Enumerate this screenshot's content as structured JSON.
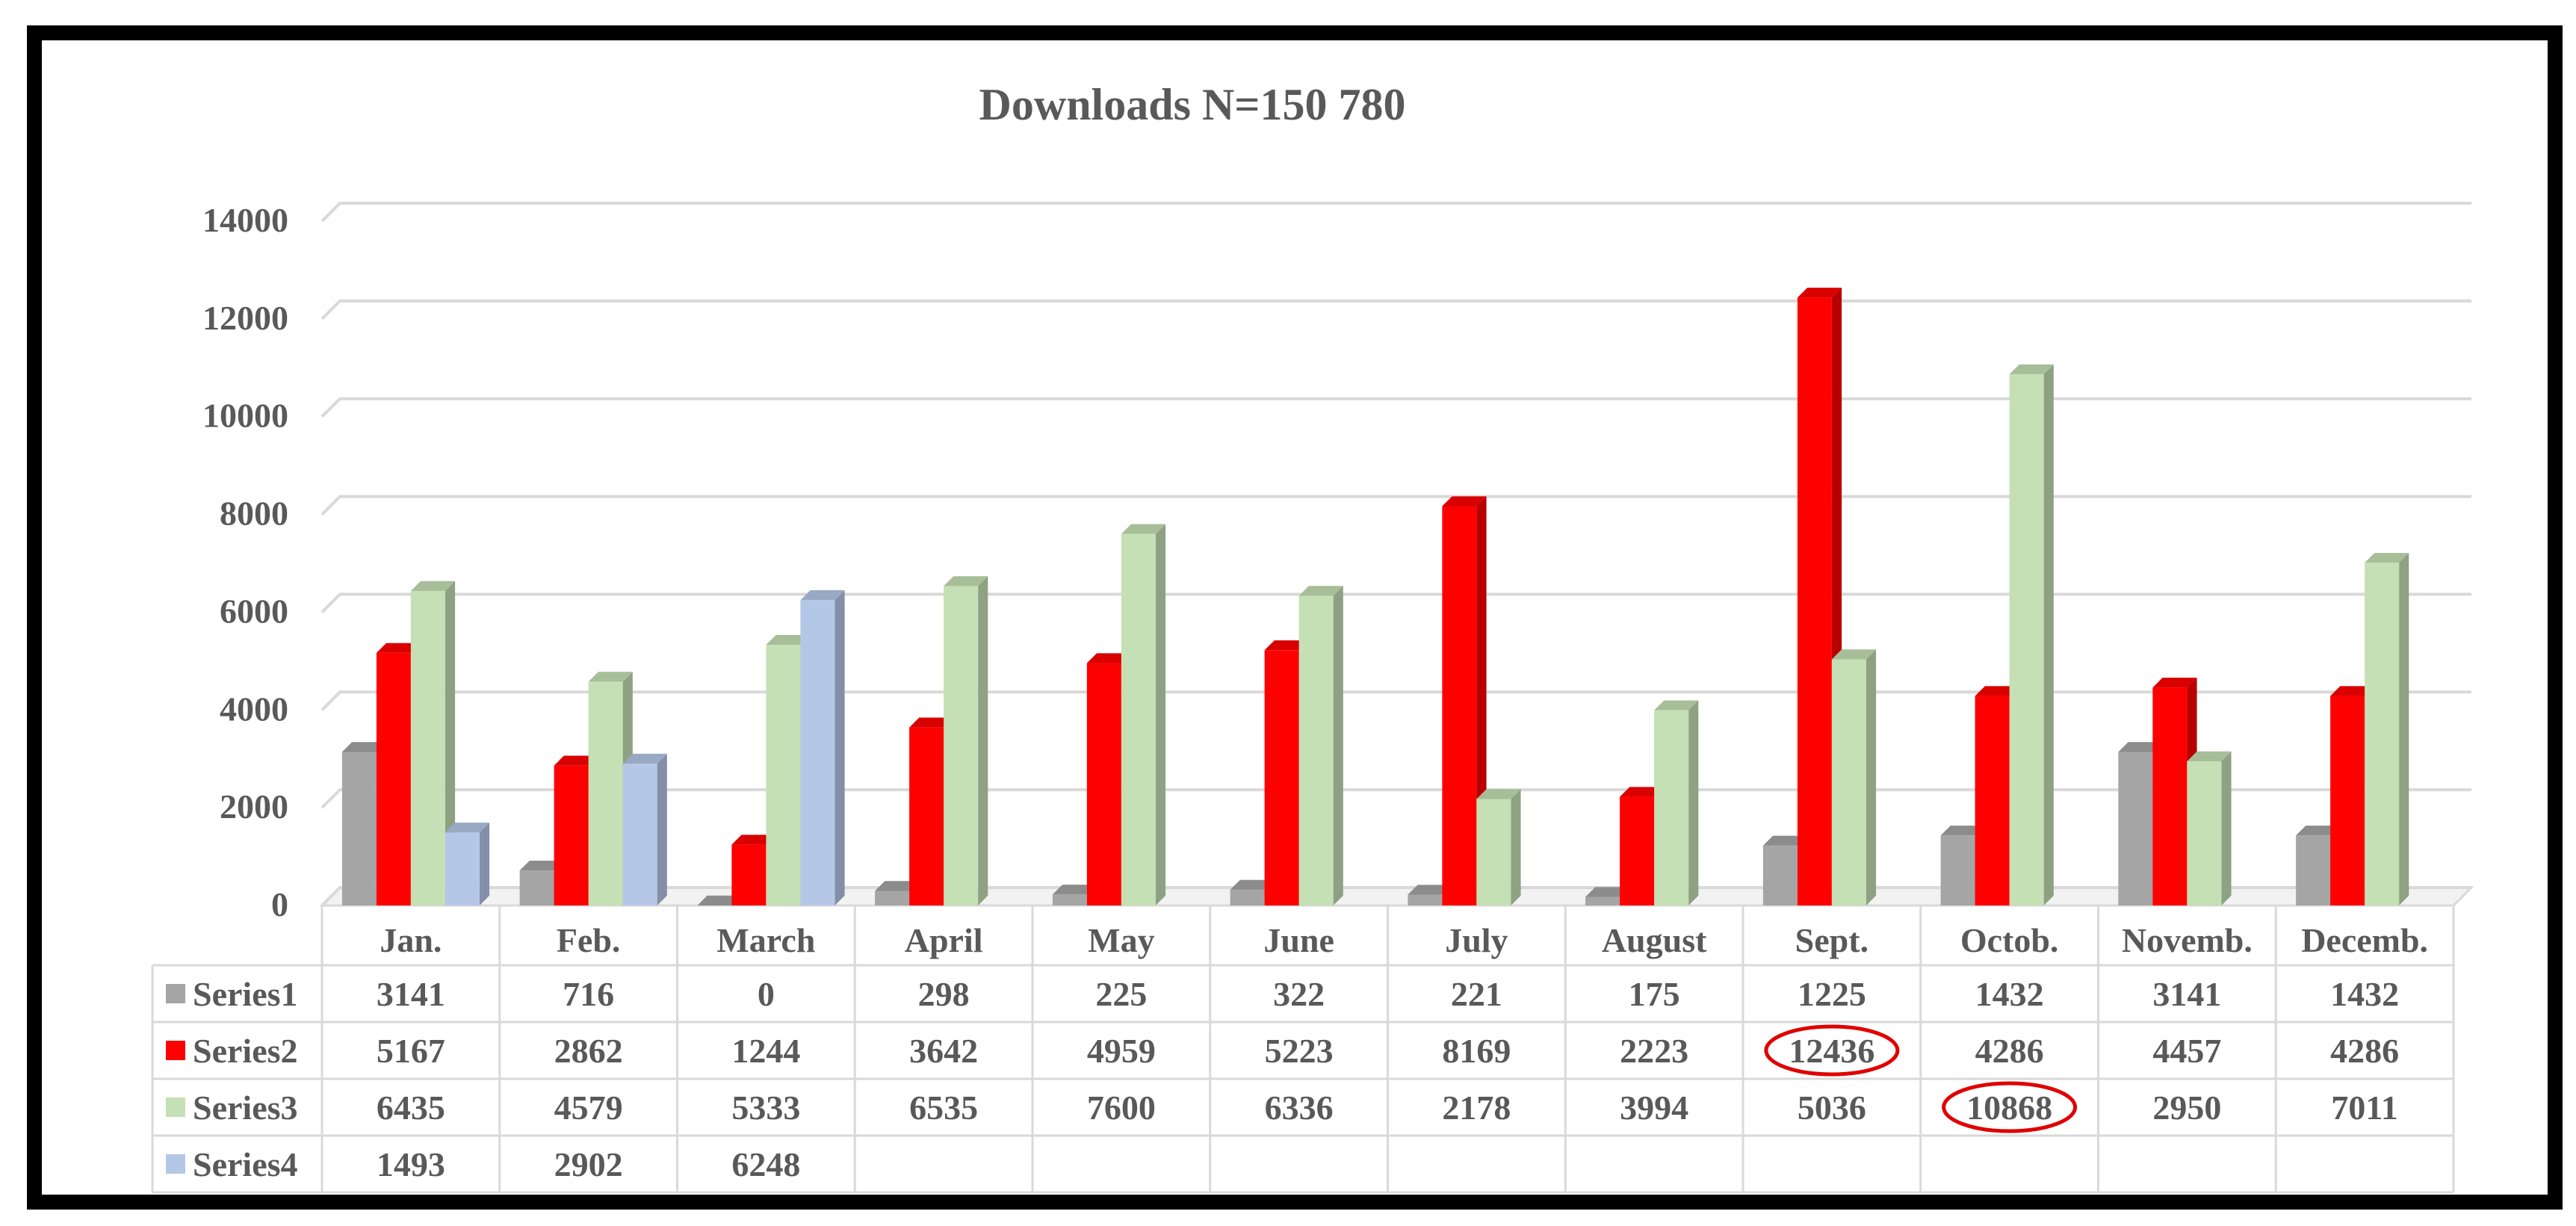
{
  "chart_data": {
    "type": "bar",
    "title": "Downloads  N=150 780",
    "xlabel": "",
    "ylabel": "",
    "ylim": [
      0,
      14000
    ],
    "yticks": [
      0,
      2000,
      4000,
      6000,
      8000,
      10000,
      12000,
      14000
    ],
    "grid": true,
    "legend": "data-table",
    "categories": [
      "Jan.",
      "Feb.",
      "March",
      "April",
      "May",
      "June",
      "July",
      "August",
      "Sept.",
      "Octob.",
      "Novemb.",
      "Decemb."
    ],
    "series": [
      {
        "name": "Series1",
        "color": "#a5a5a5",
        "values": [
          3141,
          716,
          0,
          298,
          225,
          322,
          221,
          175,
          1225,
          1432,
          3141,
          1432
        ]
      },
      {
        "name": "Series2",
        "color": "#ff0000",
        "values": [
          5167,
          2862,
          1244,
          3642,
          4959,
          5223,
          8169,
          2223,
          12436,
          4286,
          4457,
          4286
        ]
      },
      {
        "name": "Series3",
        "color": "#c5e0b4",
        "values": [
          6435,
          4579,
          5333,
          6535,
          7600,
          6336,
          2178,
          3994,
          5036,
          10868,
          2950,
          7011
        ]
      },
      {
        "name": "Series4",
        "color": "#b4c7e7",
        "values": [
          1493,
          2902,
          6248,
          null,
          null,
          null,
          null,
          null,
          null,
          null,
          null,
          null
        ]
      }
    ],
    "highlights": [
      {
        "series": "Series2",
        "category": "Sept.",
        "value": 12436
      },
      {
        "series": "Series3",
        "category": "Octob.",
        "value": 10868
      }
    ]
  }
}
